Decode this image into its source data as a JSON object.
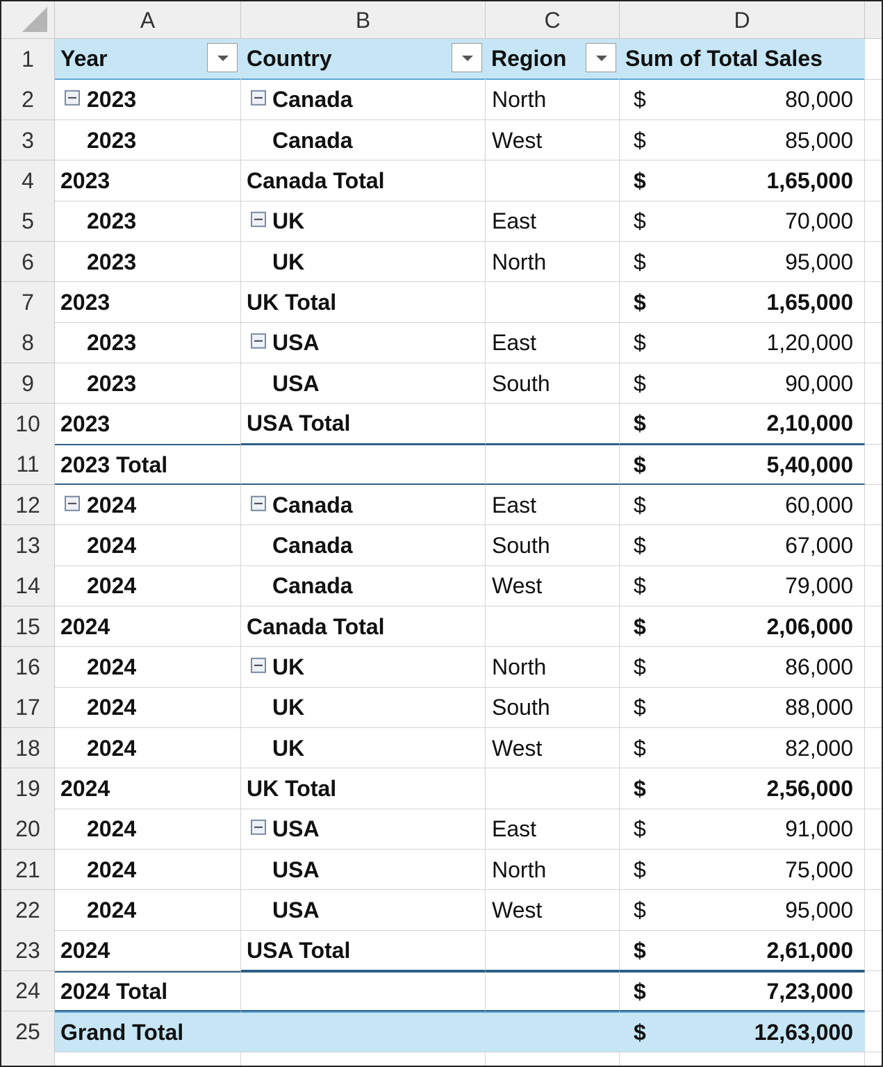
{
  "columns": [
    "A",
    "B",
    "C",
    "D"
  ],
  "row_numbers": [
    1,
    2,
    3,
    4,
    5,
    6,
    7,
    8,
    9,
    10,
    11,
    12,
    13,
    14,
    15,
    16,
    17,
    18,
    19,
    20,
    21,
    22,
    23,
    24,
    25
  ],
  "table": {
    "header": [
      {
        "text": "Year",
        "filter": true
      },
      {
        "text": "Country",
        "filter": true
      },
      {
        "text": "Region",
        "filter": true
      },
      {
        "text": "Sum of Total Sales",
        "filter": false
      }
    ],
    "rows": [
      {
        "year": "2023",
        "country": "Canada",
        "region": "North",
        "currency": "$",
        "amount": "80,000",
        "kind": "detail",
        "collapse": [
          "year",
          "country"
        ]
      },
      {
        "year": "2023",
        "country": "Canada",
        "region": "West",
        "currency": "$",
        "amount": "85,000",
        "kind": "detail"
      },
      {
        "year": "2023",
        "country": "Canada Total",
        "currency": "$",
        "amount": "1,65,000",
        "kind": "subtotal"
      },
      {
        "year": "2023",
        "country": "UK",
        "region": "East",
        "currency": "$",
        "amount": "70,000",
        "kind": "detail",
        "collapse": [
          "country"
        ]
      },
      {
        "year": "2023",
        "country": "UK",
        "region": "North",
        "currency": "$",
        "amount": "95,000",
        "kind": "detail"
      },
      {
        "year": "2023",
        "country": "UK Total",
        "currency": "$",
        "amount": "1,65,000",
        "kind": "subtotal"
      },
      {
        "year": "2023",
        "country": "USA",
        "region": "East",
        "currency": "$",
        "amount": "1,20,000",
        "kind": "detail",
        "collapse": [
          "country"
        ]
      },
      {
        "year": "2023",
        "country": "USA",
        "region": "South",
        "currency": "$",
        "amount": "90,000",
        "kind": "detail"
      },
      {
        "year": "2023",
        "country": "USA Total",
        "currency": "$",
        "amount": "2,10,000",
        "kind": "subtotal"
      },
      {
        "year": "2023 Total",
        "currency": "$",
        "amount": "5,40,000",
        "kind": "year-total"
      },
      {
        "year": "2024",
        "country": "Canada",
        "region": "East",
        "currency": "$",
        "amount": "60,000",
        "kind": "detail",
        "collapse": [
          "year",
          "country"
        ]
      },
      {
        "year": "2024",
        "country": "Canada",
        "region": "South",
        "currency": "$",
        "amount": "67,000",
        "kind": "detail"
      },
      {
        "year": "2024",
        "country": "Canada",
        "region": "West",
        "currency": "$",
        "amount": "79,000",
        "kind": "detail"
      },
      {
        "year": "2024",
        "country": "Canada Total",
        "currency": "$",
        "amount": "2,06,000",
        "kind": "subtotal"
      },
      {
        "year": "2024",
        "country": "UK",
        "region": "North",
        "currency": "$",
        "amount": "86,000",
        "kind": "detail",
        "collapse": [
          "country"
        ]
      },
      {
        "year": "2024",
        "country": "UK",
        "region": "South",
        "currency": "$",
        "amount": "88,000",
        "kind": "detail"
      },
      {
        "year": "2024",
        "country": "UK",
        "region": "West",
        "currency": "$",
        "amount": "82,000",
        "kind": "detail"
      },
      {
        "year": "2024",
        "country": "UK Total",
        "currency": "$",
        "amount": "2,56,000",
        "kind": "subtotal"
      },
      {
        "year": "2024",
        "country": "USA",
        "region": "East",
        "currency": "$",
        "amount": "91,000",
        "kind": "detail",
        "collapse": [
          "country"
        ]
      },
      {
        "year": "2024",
        "country": "USA",
        "region": "North",
        "currency": "$",
        "amount": "75,000",
        "kind": "detail"
      },
      {
        "year": "2024",
        "country": "USA",
        "region": "West",
        "currency": "$",
        "amount": "95,000",
        "kind": "detail"
      },
      {
        "year": "2024",
        "country": "USA Total",
        "currency": "$",
        "amount": "2,61,000",
        "kind": "subtotal"
      },
      {
        "year": "2024 Total",
        "currency": "$",
        "amount": "7,23,000",
        "kind": "year-total"
      },
      {
        "year": "Grand Total",
        "currency": "$",
        "amount": "12,63,000",
        "kind": "grand-total"
      }
    ]
  }
}
